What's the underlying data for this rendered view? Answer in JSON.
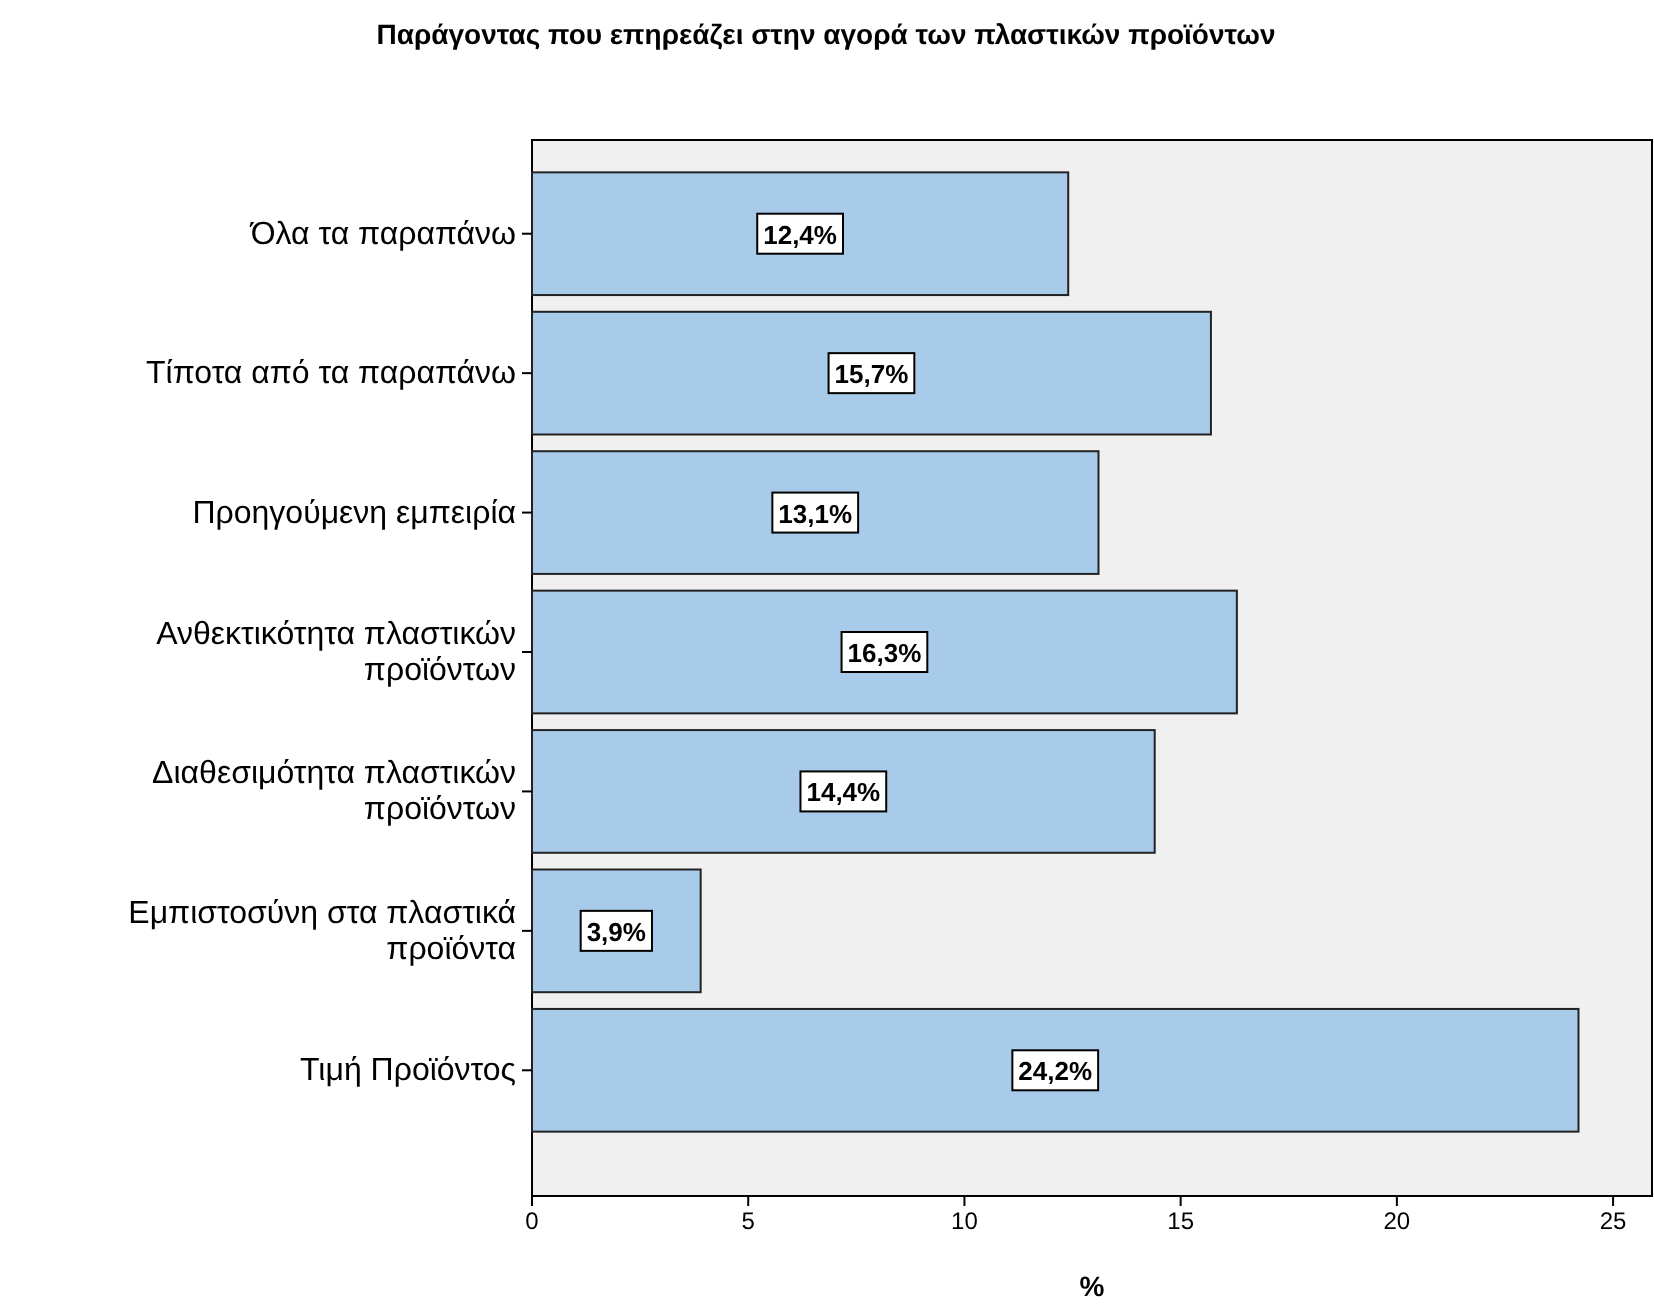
{
  "chart_data": {
    "type": "bar",
    "orientation": "horizontal",
    "title": "Παράγοντας που επηρεάζει στην αγορά των πλαστικών προϊόντων",
    "xlabel": "%",
    "categories": [
      "Όλα τα παραπάνω",
      "Τίποτα από τα παραπάνω",
      "Προηγούμενη εμπειρία",
      "Ανθεκτικότητα πλαστικών προϊόντων",
      "Διαθεσιμότητα πλαστικών προϊόντων",
      "Εμπιστοσύνη στα πλαστικά προϊόντα",
      "Τιμή Προϊόντος"
    ],
    "values": [
      12.4,
      15.7,
      13.1,
      16.3,
      14.4,
      3.9,
      24.2
    ],
    "value_labels": [
      "12,4%",
      "15,7%",
      "13,1%",
      "16,3%",
      "14,4%",
      "3,9%",
      "24,2%"
    ],
    "color": "#a9cbea",
    "xlim": [
      0,
      25.9
    ],
    "xticks": [
      0,
      5,
      10,
      15,
      20,
      25
    ],
    "grid": false
  }
}
